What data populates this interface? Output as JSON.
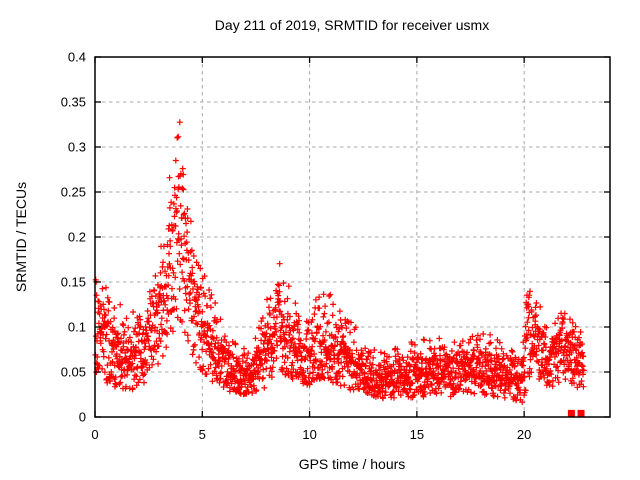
{
  "page": {
    "background": "#ffffff"
  },
  "chart_data": {
    "type": "scatter",
    "title": "Day 211 of 2019, SRMTID for receiver usmx",
    "xlabel": "GPS time / hours",
    "ylabel": "SRMTID / TECUs",
    "xlim": [
      0,
      24
    ],
    "ylim": [
      0,
      0.4
    ],
    "x_ticks": [
      0,
      5,
      10,
      15,
      20
    ],
    "x_tick_labels": [
      "0",
      "5",
      "10",
      "15",
      "20"
    ],
    "y_ticks": [
      0,
      0.05,
      0.1,
      0.15,
      0.2,
      0.25,
      0.3,
      0.35,
      0.4
    ],
    "y_tick_labels": [
      "0",
      "0.05",
      "0.1",
      "0.15",
      "0.2",
      "0.25",
      "0.3",
      "0.35",
      "0.4"
    ],
    "grid": "dashed",
    "grid_color": "#a8a8a8",
    "frame_color": "#000000",
    "marker": "plus",
    "marker_color": "#ff0000",
    "legend": "none",
    "description": "Dense red plus-marker scatter of SRMTID vs GPS time; main peak ~0.37 TECUs near hour 3.9, secondary peaks near hours 8.5 and 20.4, quiet band ~0.05 between hours 13 and 20, data ends near hour 22.8",
    "points": {
      "n": 2300,
      "seed": 20192111,
      "x_start": 0.02,
      "x_end": 22.78,
      "envelope": [
        [
          0.0,
          0.045,
          0.095,
          0.165
        ],
        [
          0.3,
          0.04,
          0.09,
          0.15
        ],
        [
          0.7,
          0.035,
          0.08,
          0.14
        ],
        [
          1.2,
          0.03,
          0.07,
          0.125
        ],
        [
          1.7,
          0.03,
          0.065,
          0.115
        ],
        [
          2.2,
          0.035,
          0.075,
          0.13
        ],
        [
          2.7,
          0.05,
          0.1,
          0.155
        ],
        [
          3.0,
          0.06,
          0.115,
          0.185
        ],
        [
          3.3,
          0.07,
          0.14,
          0.22
        ],
        [
          3.6,
          0.09,
          0.18,
          0.3
        ],
        [
          3.85,
          0.11,
          0.235,
          0.37
        ],
        [
          4.1,
          0.1,
          0.21,
          0.315
        ],
        [
          4.35,
          0.08,
          0.16,
          0.235
        ],
        [
          4.7,
          0.06,
          0.12,
          0.185
        ],
        [
          5.0,
          0.05,
          0.1,
          0.165
        ],
        [
          5.4,
          0.04,
          0.085,
          0.14
        ],
        [
          5.8,
          0.035,
          0.07,
          0.115
        ],
        [
          6.3,
          0.028,
          0.055,
          0.09
        ],
        [
          6.8,
          0.025,
          0.045,
          0.075
        ],
        [
          7.3,
          0.025,
          0.048,
          0.08
        ],
        [
          7.8,
          0.03,
          0.065,
          0.11
        ],
        [
          8.2,
          0.04,
          0.09,
          0.15
        ],
        [
          8.6,
          0.05,
          0.105,
          0.175
        ],
        [
          9.0,
          0.045,
          0.09,
          0.15
        ],
        [
          9.4,
          0.04,
          0.075,
          0.13
        ],
        [
          9.9,
          0.035,
          0.065,
          0.12
        ],
        [
          10.4,
          0.04,
          0.08,
          0.135
        ],
        [
          10.9,
          0.04,
          0.075,
          0.14
        ],
        [
          11.4,
          0.035,
          0.07,
          0.12
        ],
        [
          11.9,
          0.03,
          0.065,
          0.11
        ],
        [
          12.4,
          0.028,
          0.05,
          0.09
        ],
        [
          13.0,
          0.022,
          0.045,
          0.075
        ],
        [
          13.6,
          0.02,
          0.042,
          0.07
        ],
        [
          14.2,
          0.022,
          0.048,
          0.08
        ],
        [
          15.0,
          0.02,
          0.045,
          0.085
        ],
        [
          15.8,
          0.025,
          0.05,
          0.09
        ],
        [
          16.5,
          0.022,
          0.048,
          0.085
        ],
        [
          17.2,
          0.025,
          0.052,
          0.09
        ],
        [
          18.0,
          0.025,
          0.05,
          0.1
        ],
        [
          18.8,
          0.022,
          0.048,
          0.085
        ],
        [
          19.4,
          0.02,
          0.045,
          0.08
        ],
        [
          19.9,
          0.015,
          0.04,
          0.08
        ],
        [
          20.2,
          0.04,
          0.09,
          0.155
        ],
        [
          20.45,
          0.05,
          0.105,
          0.17
        ],
        [
          20.7,
          0.04,
          0.08,
          0.13
        ],
        [
          21.0,
          0.03,
          0.06,
          0.1
        ],
        [
          21.4,
          0.035,
          0.065,
          0.105
        ],
        [
          21.8,
          0.04,
          0.08,
          0.12
        ],
        [
          22.2,
          0.035,
          0.07,
          0.11
        ],
        [
          22.5,
          0.03,
          0.06,
          0.1
        ],
        [
          22.78,
          0.03,
          0.055,
          0.09
        ]
      ]
    },
    "square_markers": [
      {
        "x": 22.2,
        "y": 0.004
      },
      {
        "x": 22.65,
        "y": 0.004
      }
    ]
  }
}
